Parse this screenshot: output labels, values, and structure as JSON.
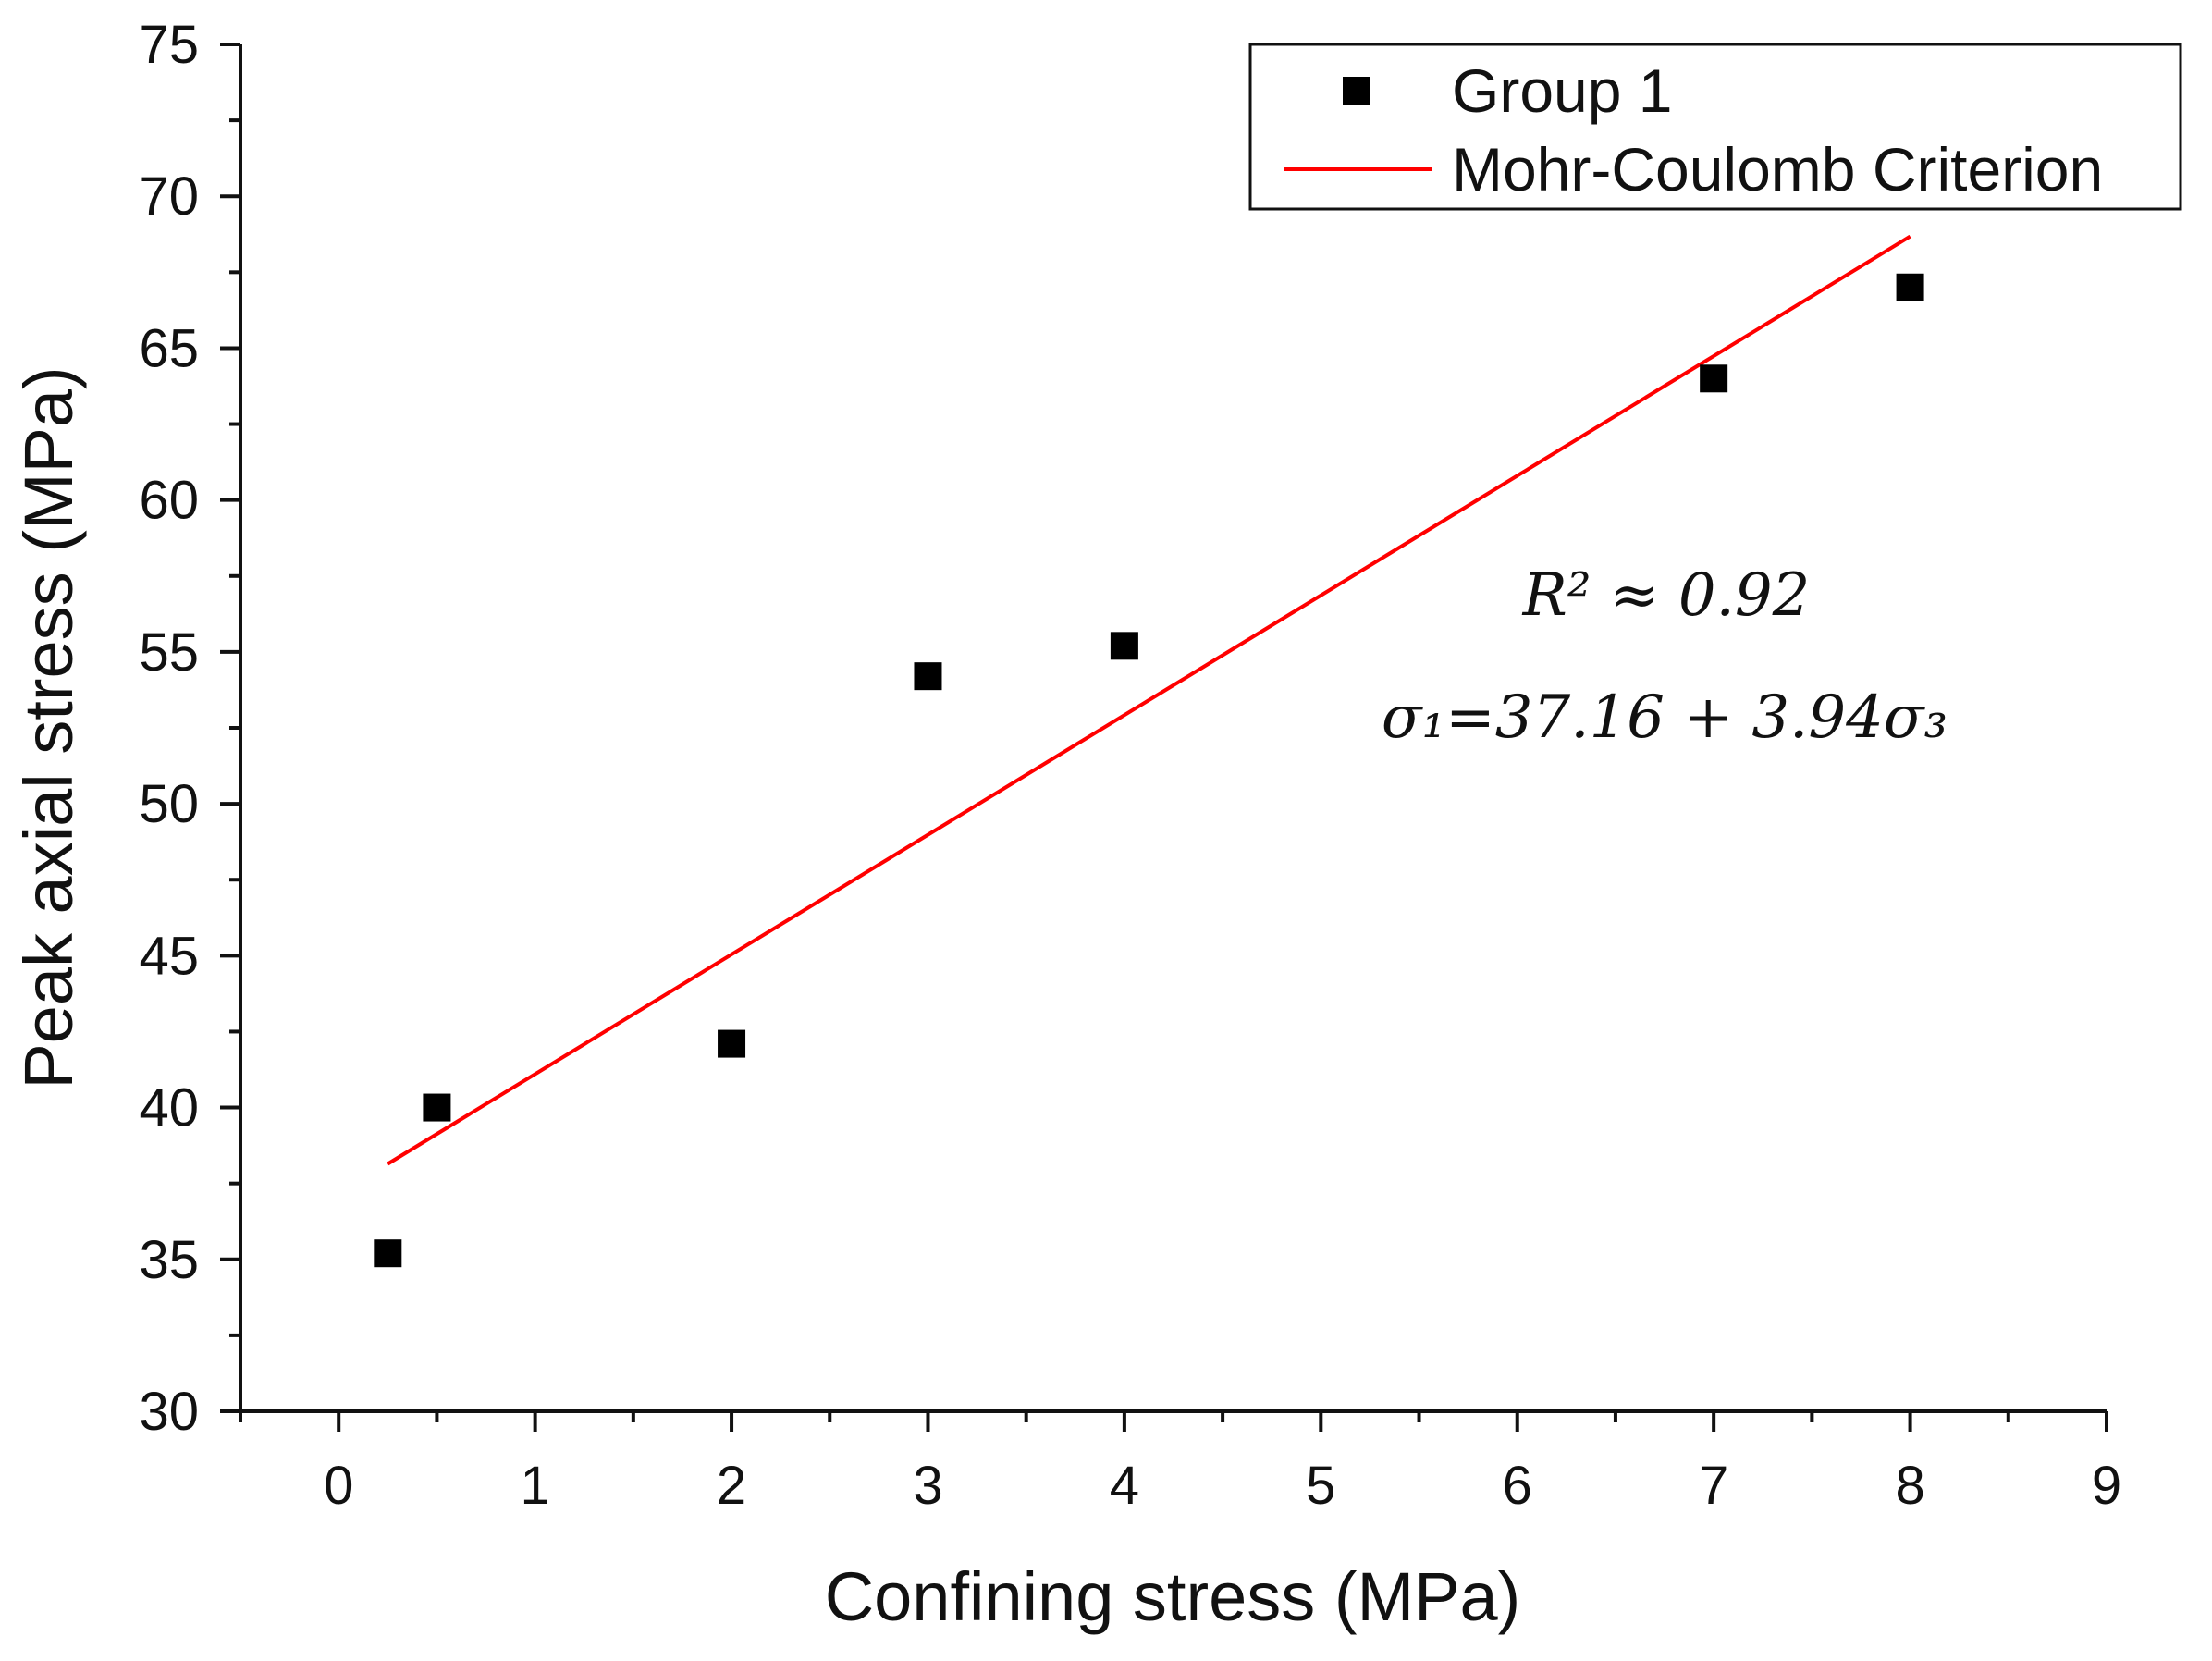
{
  "chart_data": {
    "type": "scatter",
    "title": "",
    "xlabel": "Confining stress (MPa)",
    "ylabel": "Peak axial stress (MPa)",
    "xlim": [
      -0.5,
      9
    ],
    "ylim": [
      30,
      75
    ],
    "x_ticks": [
      0,
      1,
      2,
      3,
      4,
      5,
      6,
      7,
      8,
      9
    ],
    "y_ticks": [
      30,
      35,
      40,
      45,
      50,
      55,
      60,
      65,
      70,
      75
    ],
    "x_ticks_text": [
      "0",
      "1",
      "2",
      "3",
      "4",
      "5",
      "6",
      "7",
      "8",
      "9"
    ],
    "y_ticks_text": [
      "30",
      "35",
      "40",
      "45",
      "50",
      "55",
      "60",
      "65",
      "70",
      "75"
    ],
    "grid": false,
    "legend_position": "top-right",
    "series": [
      {
        "name": "Group 1",
        "kind": "scatter",
        "marker": "square",
        "color": "#000000",
        "x": [
          0.25,
          0.5,
          2,
          3,
          4,
          7,
          8
        ],
        "y": [
          35.2,
          40.0,
          42.1,
          54.2,
          55.2,
          64.0,
          67.0
        ]
      },
      {
        "name": "Mohr-Coulomb Criterion",
        "kind": "line",
        "color": "#ff0000",
        "intercept": 37.16,
        "slope": 3.94,
        "x_range": [
          0.25,
          8
        ]
      }
    ],
    "annotations": {
      "r2_label": "R² ≈ 0.92",
      "equation": "σ₁=37.16 + 3.94σ₃"
    }
  }
}
